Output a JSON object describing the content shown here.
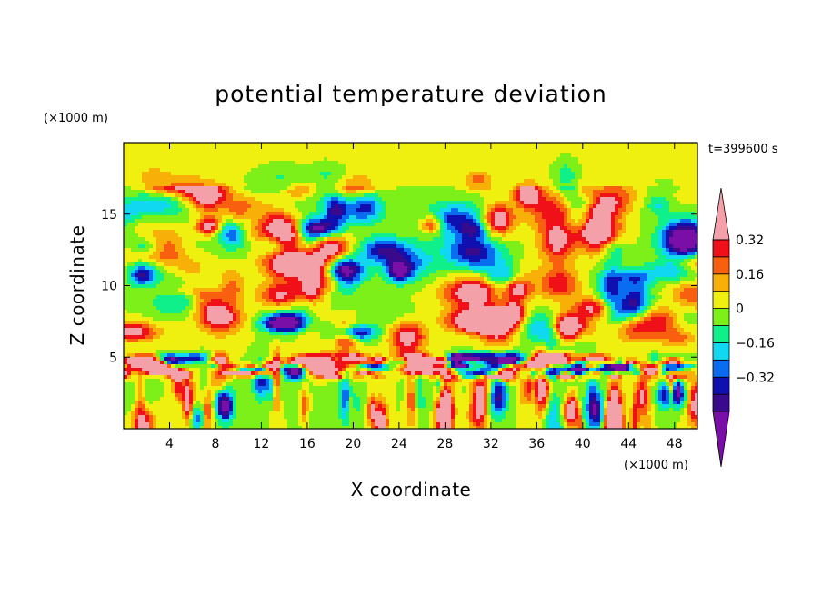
{
  "chart_data": {
    "type": "heatmap",
    "title": "potential temperature deviation",
    "xlabel": "X coordinate",
    "ylabel": "Z coordinate",
    "x_unit": "(×1000 m)",
    "y_unit": "(×1000 m)",
    "time_label": "t=399600 s",
    "xlim": [
      0,
      50
    ],
    "ylim": [
      0,
      20
    ],
    "x_ticks": [
      4,
      8,
      12,
      16,
      20,
      24,
      28,
      32,
      36,
      40,
      44,
      48
    ],
    "y_ticks": [
      5,
      10,
      15
    ],
    "colorbar": {
      "levels": [
        -0.48,
        -0.4,
        -0.32,
        -0.24,
        -0.16,
        -0.08,
        0,
        0.08,
        0.16,
        0.24,
        0.32,
        0.4
      ],
      "tick_values": [
        0.32,
        0.16,
        0,
        -0.16,
        -0.32
      ],
      "tick_labels": [
        "0.32",
        "0.16",
        "0",
        "−0.16",
        "−0.32"
      ],
      "colors": [
        "#7a0fa8",
        "#3a0a8c",
        "#1010b0",
        "#0a6cf0",
        "#10d8f0",
        "#10f08a",
        "#7cf018",
        "#f0f010",
        "#f8b008",
        "#f86010",
        "#f01018",
        "#f4a0a8"
      ]
    }
  }
}
